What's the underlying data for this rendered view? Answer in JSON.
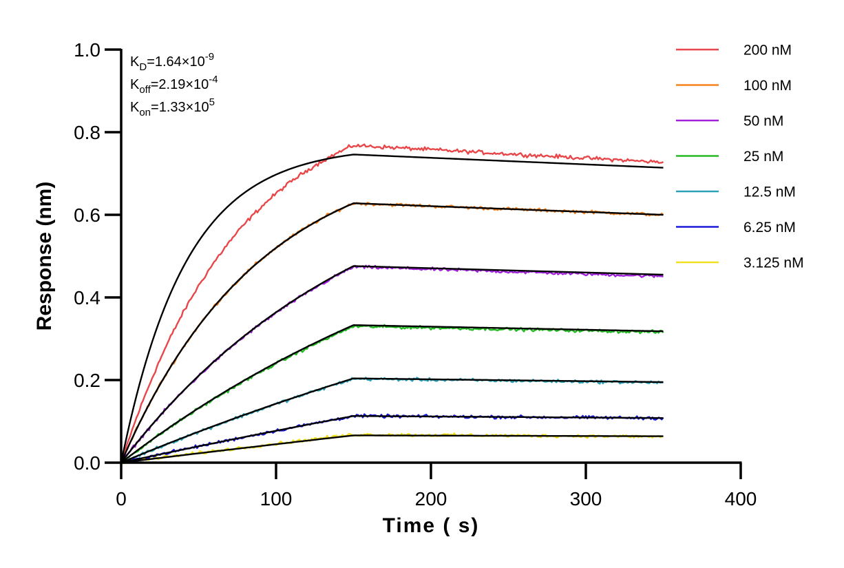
{
  "chart_data": {
    "type": "line",
    "xlabel": "Time ( s)",
    "ylabel": "Response (nm)",
    "xlim": [
      0,
      400
    ],
    "ylim": [
      0,
      1.0
    ],
    "xticks": [
      0,
      100,
      200,
      300,
      400
    ],
    "xtick_labels": [
      "0",
      "100",
      "200",
      "300",
      "400"
    ],
    "yticks": [
      0,
      0.2,
      0.4,
      0.6,
      0.8,
      1.0
    ],
    "ytick_labels": [
      "0.0",
      "0.2",
      "0.4",
      "0.6",
      "0.8",
      "1.0"
    ],
    "grid": false,
    "legend_position": "top-right",
    "association_end": 150,
    "x_end": 350,
    "annotations": {
      "kd": {
        "main": "K",
        "sub": "D",
        "rest": "=1.64×10",
        "sup": "-9"
      },
      "koff": {
        "main": "K",
        "sub": "off",
        "rest": "=2.19×10",
        "sup": "-4"
      },
      "kon": {
        "main": "K",
        "sub": "on",
        "rest": "=1.33×10",
        "sup": "5"
      }
    },
    "fit_color": "#000000",
    "series": [
      {
        "name": "200 nM",
        "color": "#e8474a",
        "fit_plateau": 0.78,
        "fit_rate": 0.024,
        "fit_end_value": 0.746,
        "fit_final": 0.714,
        "data_plateau": 0.9,
        "data_rate": 0.013,
        "data_end_value": 0.768,
        "data_final": 0.727
      },
      {
        "name": "100 nM",
        "color": "#f5821f",
        "fit_plateau": 0.78,
        "fit_rate": 0.0112,
        "fit_end_value": 0.628,
        "fit_final": 0.6,
        "data_plateau": 0.78,
        "data_rate": 0.0112,
        "data_end_value": 0.628,
        "data_final": 0.6
      },
      {
        "name": "50 nM",
        "color": "#a020dc",
        "fit_plateau": 0.78,
        "fit_rate": 0.0063,
        "fit_end_value": 0.476,
        "fit_final": 0.455,
        "data_plateau": 0.78,
        "data_rate": 0.0063,
        "data_end_value": 0.474,
        "data_final": 0.451
      },
      {
        "name": "25 nM",
        "color": "#22bb22",
        "fit_plateau": 0.78,
        "fit_rate": 0.0037,
        "fit_end_value": 0.333,
        "fit_final": 0.318,
        "data_plateau": 0.78,
        "data_rate": 0.0037,
        "data_end_value": 0.33,
        "data_final": 0.316
      },
      {
        "name": "12.5 nM",
        "color": "#2aa3b8",
        "fit_plateau": 0.78,
        "fit_rate": 0.002,
        "fit_end_value": 0.204,
        "fit_final": 0.195,
        "data_plateau": 0.78,
        "data_rate": 0.002,
        "data_end_value": 0.203,
        "data_final": 0.194
      },
      {
        "name": "6.25 nM",
        "color": "#1a1ad8",
        "fit_plateau": 0.78,
        "fit_rate": 0.001,
        "fit_end_value": 0.113,
        "fit_final": 0.108,
        "data_plateau": 0.78,
        "data_rate": 0.001,
        "data_end_value": 0.113,
        "data_final": 0.108
      },
      {
        "name": "3.125 nM",
        "color": "#f0e020",
        "fit_plateau": 0.78,
        "fit_rate": 0.00058,
        "fit_end_value": 0.066,
        "fit_final": 0.064,
        "data_plateau": 0.78,
        "data_rate": 0.00058,
        "data_end_value": 0.068,
        "data_final": 0.063
      }
    ]
  }
}
